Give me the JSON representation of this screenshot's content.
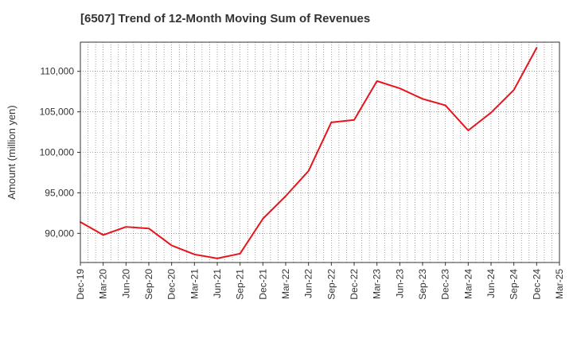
{
  "chart_data": {
    "type": "line",
    "title": "[6507]  Trend of 12-Month Moving Sum of Revenues",
    "xlabel": "",
    "ylabel": "Amount (million yen)",
    "ylim": [
      86400,
      113600
    ],
    "yticks": [
      90000,
      95000,
      100000,
      105000,
      110000
    ],
    "ytick_labels": [
      "90,000",
      "95,000",
      "100,000",
      "105,000",
      "110,000"
    ],
    "categories": [
      "Dec-19",
      "Mar-20",
      "Jun-20",
      "Sep-20",
      "Dec-20",
      "Mar-21",
      "Jun-21",
      "Sep-21",
      "Dec-21",
      "Mar-22",
      "Jun-22",
      "Sep-22",
      "Dec-22",
      "Mar-23",
      "Jun-23",
      "Sep-23",
      "Dec-23",
      "Mar-24",
      "Jun-24",
      "Sep-24",
      "Dec-24",
      "Mar-25"
    ],
    "series": [
      {
        "values": [
          91400,
          89800,
          90800,
          90600,
          88500,
          87400,
          86900,
          87500,
          91800,
          94600,
          97700,
          103700,
          104000,
          108800,
          107900,
          106600,
          105800,
          102700,
          104900,
          107700,
          112900,
          null
        ],
        "color": "#e8141c"
      }
    ],
    "grid": true,
    "grid_style": "dotted",
    "legend": "none"
  }
}
